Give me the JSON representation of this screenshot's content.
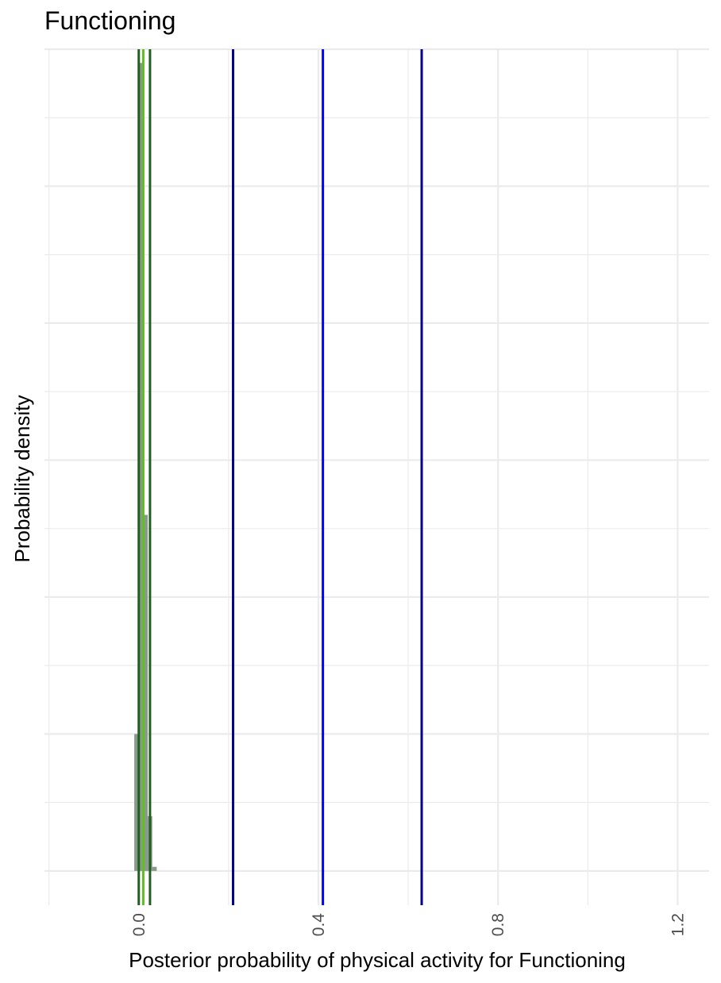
{
  "chart_data": {
    "type": "bar",
    "title": "Functioning",
    "xlabel": "Posterior probability of physical activity for Functioning",
    "ylabel": "Probability density",
    "xlim": [
      -0.21,
      1.27
    ],
    "ylim": [
      -0.025,
      0.6
    ],
    "x_ticks": [
      0.0,
      0.4,
      0.8,
      1.2
    ],
    "x_tick_labels": [
      "0.0",
      "0.4",
      "0.8",
      "1.2"
    ],
    "grid": true,
    "histogram": {
      "bin_width": 0.01,
      "color": "#8a9a8a",
      "bins": [
        {
          "x": -0.005,
          "density": 0.1
        },
        {
          "x": 0.005,
          "density": 0.59
        },
        {
          "x": 0.015,
          "density": 0.26
        },
        {
          "x": 0.025,
          "density": 0.04
        },
        {
          "x": 0.035,
          "density": 0.003
        }
      ]
    },
    "vertical_lines": [
      {
        "x": 0.0,
        "color": "#1f5f1f"
      },
      {
        "x": 0.01,
        "color": "#5fbf1f"
      },
      {
        "x": 0.025,
        "color": "#1f5f1f"
      },
      {
        "x": 0.21,
        "color": "#00008b"
      },
      {
        "x": 0.41,
        "color": "#0000ff"
      },
      {
        "x": 0.63,
        "color": "#00008b"
      }
    ]
  }
}
